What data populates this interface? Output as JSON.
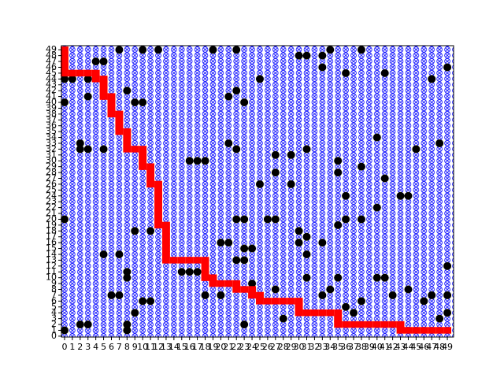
{
  "chart_data": {
    "type": "grid-path",
    "xlim": [
      -0.4,
      49.8
    ],
    "ylim": [
      -0.15,
      49.7
    ],
    "xticks": [
      0,
      1,
      2,
      3,
      4,
      5,
      6,
      7,
      8,
      9,
      10,
      11,
      12,
      13,
      14,
      15,
      16,
      17,
      18,
      19,
      20,
      21,
      22,
      23,
      24,
      25,
      26,
      27,
      28,
      29,
      30,
      31,
      32,
      33,
      34,
      35,
      36,
      37,
      38,
      39,
      40,
      41,
      42,
      43,
      44,
      45,
      46,
      47,
      48,
      49
    ],
    "yticks": [
      0,
      1,
      2,
      3,
      4,
      5,
      6,
      7,
      8,
      9,
      10,
      11,
      12,
      13,
      14,
      15,
      16,
      17,
      18,
      19,
      20,
      21,
      22,
      23,
      24,
      25,
      26,
      27,
      28,
      29,
      30,
      31,
      32,
      33,
      34,
      35,
      36,
      37,
      38,
      39,
      40,
      41,
      42,
      43,
      44,
      45,
      46,
      47,
      48,
      49
    ],
    "open_color": "#0000ff",
    "obstacle_color": "#000000",
    "path_color": "#ff0000",
    "obstacles": [
      [
        7,
        49
      ],
      [
        10,
        49
      ],
      [
        12,
        49
      ],
      [
        19,
        49
      ],
      [
        22,
        49
      ],
      [
        30,
        48
      ],
      [
        31,
        48
      ],
      [
        33,
        48
      ],
      [
        34,
        49
      ],
      [
        38,
        49
      ],
      [
        4,
        47
      ],
      [
        5,
        47
      ],
      [
        0,
        44
      ],
      [
        1,
        44
      ],
      [
        3,
        44
      ],
      [
        8,
        42
      ],
      [
        9,
        40
      ],
      [
        10,
        40
      ],
      [
        0,
        40
      ],
      [
        3,
        41
      ],
      [
        21,
        41
      ],
      [
        22,
        42
      ],
      [
        23,
        40
      ],
      [
        25,
        44
      ],
      [
        33,
        46
      ],
      [
        36,
        45
      ],
      [
        41,
        45
      ],
      [
        47,
        44
      ],
      [
        49,
        46
      ],
      [
        2,
        33
      ],
      [
        2,
        32
      ],
      [
        3,
        32
      ],
      [
        5,
        32
      ],
      [
        16,
        30
      ],
      [
        17,
        30
      ],
      [
        18,
        30
      ],
      [
        21,
        33
      ],
      [
        22,
        32
      ],
      [
        27,
        31
      ],
      [
        29,
        31
      ],
      [
        31,
        32
      ],
      [
        35,
        30
      ],
      [
        38,
        29
      ],
      [
        40,
        34
      ],
      [
        45,
        32
      ],
      [
        48,
        33
      ],
      [
        27,
        28
      ],
      [
        35,
        28
      ],
      [
        41,
        27
      ],
      [
        25,
        26
      ],
      [
        29,
        26
      ],
      [
        40,
        22
      ],
      [
        36,
        24
      ],
      [
        43,
        24
      ],
      [
        44,
        24
      ],
      [
        0,
        20
      ],
      [
        9,
        18
      ],
      [
        11,
        18
      ],
      [
        22,
        20
      ],
      [
        23,
        20
      ],
      [
        26,
        20
      ],
      [
        27,
        20
      ],
      [
        30,
        18
      ],
      [
        31,
        17
      ],
      [
        35,
        19
      ],
      [
        36,
        20
      ],
      [
        38,
        20
      ],
      [
        20,
        16
      ],
      [
        21,
        16
      ],
      [
        23,
        15
      ],
      [
        24,
        15
      ],
      [
        22,
        13
      ],
      [
        23,
        13
      ],
      [
        30,
        16
      ],
      [
        31,
        14
      ],
      [
        33,
        16
      ],
      [
        5,
        14
      ],
      [
        7,
        14
      ],
      [
        8,
        11
      ],
      [
        8,
        10
      ],
      [
        15,
        11
      ],
      [
        16,
        11
      ],
      [
        17,
        11
      ],
      [
        24,
        9
      ],
      [
        27,
        8
      ],
      [
        31,
        10
      ],
      [
        35,
        10
      ],
      [
        40,
        10
      ],
      [
        41,
        10
      ],
      [
        42,
        7
      ],
      [
        44,
        8
      ],
      [
        49,
        7
      ],
      [
        49,
        12
      ],
      [
        49,
        4
      ],
      [
        46,
        6
      ],
      [
        47,
        7
      ],
      [
        0,
        1
      ],
      [
        2,
        2
      ],
      [
        6,
        7
      ],
      [
        7,
        7
      ],
      [
        8,
        1
      ],
      [
        8,
        2
      ],
      [
        9,
        4
      ],
      [
        18,
        7
      ],
      [
        20,
        7
      ],
      [
        23,
        2
      ],
      [
        28,
        3
      ],
      [
        33,
        7
      ],
      [
        34,
        8
      ],
      [
        36,
        5
      ],
      [
        37,
        4
      ],
      [
        38,
        6
      ],
      [
        48,
        3
      ],
      [
        10,
        6
      ],
      [
        11,
        6
      ],
      [
        3,
        2
      ]
    ],
    "path": [
      [
        0,
        49
      ],
      [
        0,
        48
      ],
      [
        0,
        47
      ],
      [
        0,
        46
      ],
      [
        0,
        45
      ],
      [
        1,
        45
      ],
      [
        2,
        45
      ],
      [
        3,
        45
      ],
      [
        4,
        45
      ],
      [
        4,
        44
      ],
      [
        5,
        44
      ],
      [
        5,
        43
      ],
      [
        5,
        42
      ],
      [
        5,
        41
      ],
      [
        6,
        41
      ],
      [
        6,
        40
      ],
      [
        6,
        39
      ],
      [
        6,
        38
      ],
      [
        7,
        38
      ],
      [
        7,
        37
      ],
      [
        7,
        36
      ],
      [
        7,
        35
      ],
      [
        8,
        35
      ],
      [
        8,
        34
      ],
      [
        8,
        33
      ],
      [
        8,
        32
      ],
      [
        9,
        32
      ],
      [
        10,
        32
      ],
      [
        10,
        31
      ],
      [
        10,
        30
      ],
      [
        10,
        29
      ],
      [
        11,
        29
      ],
      [
        11,
        28
      ],
      [
        11,
        27
      ],
      [
        11,
        26
      ],
      [
        12,
        26
      ],
      [
        12,
        25
      ],
      [
        12,
        24
      ],
      [
        12,
        23
      ],
      [
        12,
        22
      ],
      [
        12,
        21
      ],
      [
        12,
        20
      ],
      [
        12,
        19
      ],
      [
        13,
        19
      ],
      [
        13,
        18
      ],
      [
        13,
        17
      ],
      [
        13,
        16
      ],
      [
        13,
        15
      ],
      [
        13,
        14
      ],
      [
        13,
        13
      ],
      [
        14,
        13
      ],
      [
        15,
        13
      ],
      [
        16,
        13
      ],
      [
        17,
        13
      ],
      [
        18,
        13
      ],
      [
        18,
        12
      ],
      [
        18,
        11
      ],
      [
        18,
        10
      ],
      [
        19,
        10
      ],
      [
        19,
        9
      ],
      [
        20,
        9
      ],
      [
        21,
        9
      ],
      [
        22,
        9
      ],
      [
        22,
        8
      ],
      [
        23,
        8
      ],
      [
        24,
        8
      ],
      [
        24,
        7
      ],
      [
        25,
        7
      ],
      [
        25,
        6
      ],
      [
        26,
        6
      ],
      [
        27,
        6
      ],
      [
        28,
        6
      ],
      [
        29,
        6
      ],
      [
        30,
        6
      ],
      [
        30,
        5
      ],
      [
        30,
        4
      ],
      [
        31,
        4
      ],
      [
        32,
        4
      ],
      [
        33,
        4
      ],
      [
        34,
        4
      ],
      [
        35,
        4
      ],
      [
        35,
        3
      ],
      [
        35,
        2
      ],
      [
        36,
        2
      ],
      [
        37,
        2
      ],
      [
        38,
        2
      ],
      [
        39,
        2
      ],
      [
        40,
        2
      ],
      [
        41,
        2
      ],
      [
        42,
        2
      ],
      [
        43,
        2
      ],
      [
        43,
        1
      ],
      [
        44,
        1
      ],
      [
        45,
        1
      ],
      [
        46,
        1
      ],
      [
        47,
        1
      ],
      [
        48,
        1
      ],
      [
        49,
        1
      ]
    ]
  }
}
